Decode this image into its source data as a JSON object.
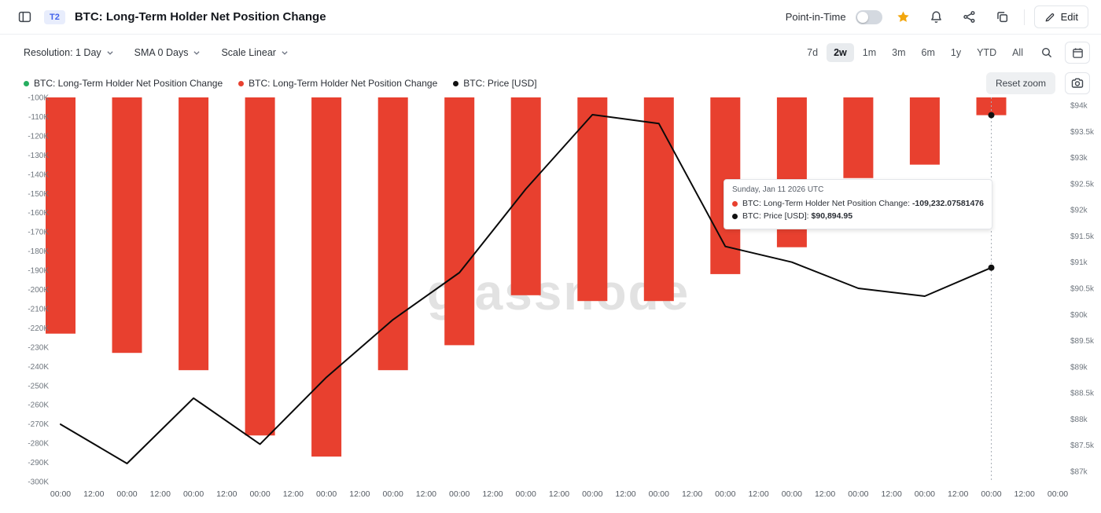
{
  "header": {
    "badge": "T2",
    "title": "BTC: Long-Term Holder Net Position Change",
    "point_in_time_label": "Point-in-Time",
    "edit_label": "Edit"
  },
  "controls": {
    "resolution": "Resolution: 1 Day",
    "sma": "SMA 0 Days",
    "scale": "Scale Linear",
    "ranges": [
      "7d",
      "2w",
      "1m",
      "3m",
      "6m",
      "1y",
      "YTD",
      "All"
    ],
    "active_range": "2w"
  },
  "legend": {
    "items": [
      {
        "label": "BTC: Long-Term Holder Net Position Change",
        "color": "#27ae60"
      },
      {
        "label": "BTC: Long-Term Holder Net Position Change",
        "color": "#e8402f"
      },
      {
        "label": "BTC: Price [USD]",
        "color": "#111111"
      }
    ],
    "reset_zoom_label": "Reset zoom"
  },
  "tooltip": {
    "date": "Sunday, Jan 11 2026 UTC",
    "rows": [
      {
        "label": "BTC: Long-Term Holder Net Position Change:",
        "value": "-109,232.07581476",
        "color": "#e8402f"
      },
      {
        "label": "BTC: Price [USD]:",
        "value": "$90,894.95",
        "color": "#111111"
      }
    ]
  },
  "watermark": "glassnode",
  "chart_data": {
    "type": "bar+line",
    "x_labels": [
      "00:00",
      "12:00",
      "00:00",
      "12:00",
      "00:00",
      "12:00",
      "00:00",
      "12:00",
      "00:00",
      "12:00",
      "00:00",
      "12:00",
      "00:00",
      "12:00",
      "00:00",
      "12:00",
      "00:00",
      "12:00",
      "00:00",
      "12:00",
      "00:00",
      "12:00",
      "00:00",
      "12:00",
      "00:00",
      "12:00",
      "00:00",
      "12:00",
      "00:00",
      "12:00",
      "00:00"
    ],
    "bar_series": {
      "name": "BTC: Long-Term Holder Net Position Change",
      "color": "#e8402f",
      "values": [
        -223000,
        -233000,
        -242000,
        -276000,
        -287000,
        -242000,
        -229000,
        -203000,
        -206000,
        -206000,
        -192000,
        -178000,
        -142000,
        -135000,
        -109232.08
      ]
    },
    "line_series": {
      "name": "BTC: Price [USD]",
      "color": "#111111",
      "values": [
        87900,
        87150,
        88400,
        87520,
        88800,
        89900,
        90800,
        92400,
        93820,
        93650,
        91300,
        91000,
        90500,
        90350,
        90894.95
      ]
    },
    "left_axis": {
      "max": -100000,
      "min": -300000,
      "step": 10000,
      "tick_labels": [
        "-100K",
        "-110K",
        "-120K",
        "-130K",
        "-140K",
        "-150K",
        "-160K",
        "-170K",
        "-180K",
        "-190K",
        "-200K",
        "-210K",
        "-220K",
        "-230K",
        "-240K",
        "-250K",
        "-260K",
        "-270K",
        "-280K",
        "-290K",
        "-300K"
      ]
    },
    "right_axis": {
      "max": 94000,
      "min": 87000,
      "step": 500,
      "tick_labels": [
        "$94k",
        "$93.5k",
        "$93k",
        "$92.5k",
        "$92k",
        "$91.5k",
        "$91k",
        "$90.5k",
        "$90k",
        "$89.5k",
        "$89k",
        "$88.5k",
        "$88k",
        "$87.5k",
        "$87k"
      ]
    },
    "crosshair": {
      "index": 14,
      "date": "Sunday, Jan 11 2026 UTC"
    },
    "grid": false,
    "legend_position": "top-left"
  }
}
